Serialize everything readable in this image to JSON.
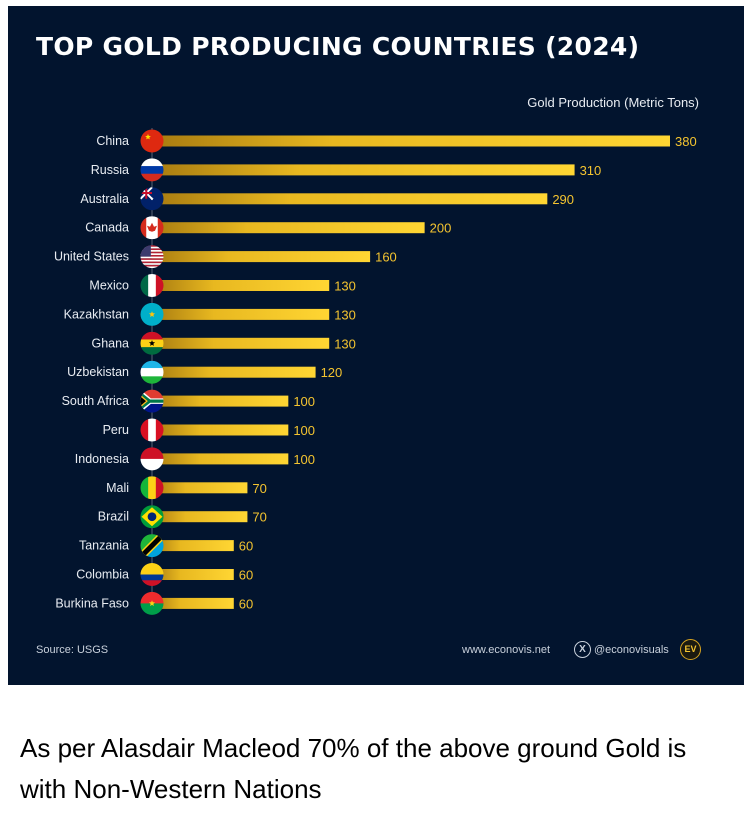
{
  "header": {
    "title": "TOP GOLD PRODUCING COUNTRIES (2024)",
    "unit_label": "Gold Production (Metric Tons)"
  },
  "footer": {
    "source": "Source: USGS",
    "website": "www.econovis.net",
    "social_icon": "x-logo-icon",
    "social_handle": "@econovisuals",
    "logo_text": "EV"
  },
  "caption": "As per Alasdair Macleod 70% of the above ground Gold is with Non-Western Nations",
  "colors": {
    "background": "#02142e",
    "bar_start": "#b8860b",
    "bar_end": "#ffd633",
    "value_text": "#f4c430",
    "label_text": "#e8ecf2"
  },
  "chart_data": {
    "type": "bar",
    "orientation": "horizontal",
    "title": "TOP GOLD PRODUCING COUNTRIES (2024)",
    "xlabel": "Gold Production (Metric Tons)",
    "ylabel": "",
    "xlim": [
      0,
      380
    ],
    "grid": false,
    "legend": "none",
    "categories": [
      "China",
      "Russia",
      "Australia",
      "Canada",
      "United States",
      "Mexico",
      "Kazakhstan",
      "Ghana",
      "Uzbekistan",
      "South Africa",
      "Peru",
      "Indonesia",
      "Mali",
      "Brazil",
      "Tanzania",
      "Colombia",
      "Burkina Faso"
    ],
    "values": [
      380,
      310,
      290,
      200,
      160,
      130,
      130,
      130,
      120,
      100,
      100,
      100,
      70,
      70,
      60,
      60,
      60
    ],
    "data_labels": [
      "380",
      "310",
      "290",
      "200",
      "160",
      "130",
      "130",
      "130",
      "120",
      "100",
      "100",
      "100",
      "70",
      "70",
      "60",
      "60",
      "60"
    ],
    "flag_icons": [
      "china-flag-icon",
      "russia-flag-icon",
      "australia-flag-icon",
      "canada-flag-icon",
      "usa-flag-icon",
      "mexico-flag-icon",
      "kazakhstan-flag-icon",
      "ghana-flag-icon",
      "uzbekistan-flag-icon",
      "south-africa-flag-icon",
      "peru-flag-icon",
      "indonesia-flag-icon",
      "mali-flag-icon",
      "brazil-flag-icon",
      "tanzania-flag-icon",
      "colombia-flag-icon",
      "burkina-faso-flag-icon"
    ],
    "source": "Source: USGS"
  }
}
